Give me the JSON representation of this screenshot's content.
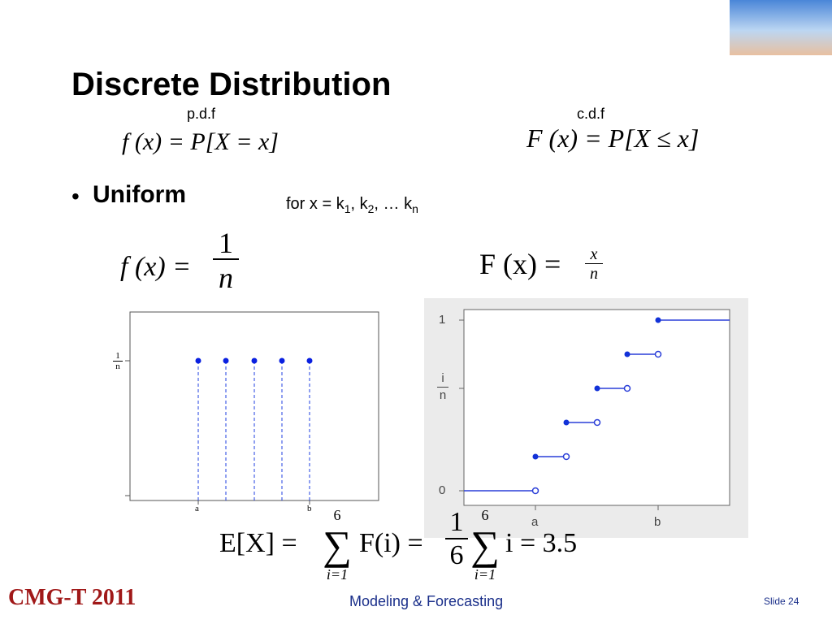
{
  "header": {
    "title": "Discrete Distribution"
  },
  "definitions": {
    "pdf": {
      "label": "p.d.f",
      "formula": "f (x) = P[X = x]"
    },
    "cdf": {
      "label": "c.d.f",
      "formula": "F (x) = P[X ≤ x]"
    }
  },
  "bullet": {
    "text": "Uniform"
  },
  "condition": [
    {
      "text": "for x = k"
    },
    {
      "sub": "1"
    },
    {
      "text": ", k"
    },
    {
      "sub": "2"
    },
    {
      "text": ", … k"
    },
    {
      "sub": "n"
    }
  ],
  "uniform_pdf": {
    "lhs": "f (x) =",
    "num": "1",
    "den": "n"
  },
  "uniform_cdf": {
    "lhs": "F (x) =",
    "num": "x",
    "den": "n"
  },
  "pmf_plot": {
    "y_label": {
      "num": "1",
      "den": "n"
    },
    "x_labels": [
      "a",
      "b"
    ]
  },
  "cdf_plot": {
    "y_labels": [
      "1",
      "0"
    ],
    "y_mid": {
      "num": "i",
      "den": "n"
    },
    "x_labels": [
      "a",
      "b"
    ]
  },
  "expectation": {
    "lhs": "E[X] =",
    "sigma": "∑",
    "upper": "6",
    "lower": "i=1",
    "mid": "F(i) =",
    "num": "1",
    "den": "6",
    "rhs": "i = 3.5"
  },
  "footer": {
    "brand": "CMG-T 2011",
    "course": "Modeling & Forecasting",
    "slide": "Slide 24"
  }
}
